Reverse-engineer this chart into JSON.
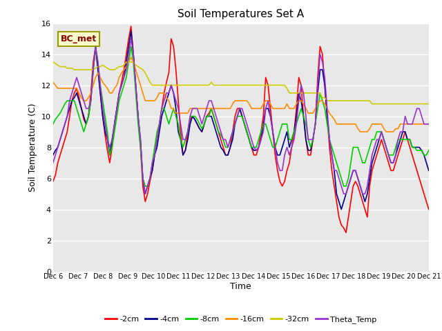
{
  "title": "Soil Temperatures Set A",
  "xlabel": "Time",
  "ylabel": "Soil Temperature (C)",
  "ylim": [
    0,
    16
  ],
  "annotation": "BC_met",
  "bg_color": "#e8e8e8",
  "fig_color": "#ffffff",
  "series_colors": {
    "-2cm": "#ff0000",
    "-4cm": "#00008b",
    "-8cm": "#00cc00",
    "-16cm": "#ff8c00",
    "-32cm": "#cccc00",
    "Theta_Temp": "#9932cc"
  },
  "x_labels": [
    "Dec 6",
    "Dec 7",
    "Dec 8",
    "Dec 9",
    "Dec 10",
    "Dec 11",
    "Dec 12",
    "Dec 13",
    "Dec 14",
    "Dec 15",
    "Dec 16",
    "Dec 17",
    "Dec 18",
    "Dec 19",
    "Dec 20",
    "Dec 21"
  ],
  "n_points": 160,
  "data": {
    "neg2cm": [
      5.8,
      6.2,
      7.0,
      7.5,
      8.0,
      8.5,
      9.0,
      10.0,
      11.0,
      11.5,
      11.8,
      11.2,
      10.5,
      9.8,
      9.5,
      10.0,
      11.5,
      13.5,
      14.5,
      13.0,
      11.5,
      10.0,
      8.8,
      7.8,
      7.0,
      8.0,
      9.5,
      10.5,
      11.5,
      12.2,
      13.0,
      14.0,
      15.0,
      15.8,
      14.0,
      12.0,
      10.0,
      8.0,
      5.5,
      4.5,
      5.0,
      5.8,
      6.5,
      7.5,
      8.5,
      9.5,
      10.5,
      11.5,
      12.2,
      12.8,
      15.0,
      14.5,
      13.0,
      11.0,
      9.0,
      7.5,
      7.8,
      9.0,
      9.8,
      10.0,
      9.8,
      9.5,
      9.2,
      9.0,
      9.5,
      10.0,
      10.2,
      10.5,
      10.0,
      9.5,
      9.0,
      8.5,
      8.0,
      7.5,
      7.5,
      8.0,
      9.0,
      10.0,
      10.5,
      10.5,
      10.0,
      9.5,
      9.0,
      8.5,
      8.0,
      7.5,
      7.5,
      8.0,
      9.0,
      10.0,
      12.5,
      12.0,
      10.5,
      9.0,
      7.5,
      6.5,
      5.8,
      5.5,
      5.8,
      6.5,
      7.0,
      8.0,
      9.0,
      10.5,
      12.5,
      12.0,
      10.0,
      8.5,
      7.5,
      7.5,
      8.5,
      9.5,
      12.5,
      14.5,
      14.0,
      12.0,
      10.0,
      8.0,
      6.5,
      5.5,
      4.5,
      3.5,
      3.0,
      2.8,
      2.5,
      3.5,
      4.5,
      5.5,
      5.8,
      5.5,
      5.0,
      4.5,
      4.0,
      3.5,
      5.5,
      6.5,
      7.0,
      7.5,
      8.0,
      8.5,
      8.0,
      7.5,
      7.0,
      6.5,
      6.5,
      7.0,
      7.5,
      8.0,
      8.5,
      9.0,
      8.5,
      8.0,
      7.5,
      7.0,
      6.5,
      6.0,
      5.5,
      5.0,
      4.5,
      4.0
    ],
    "neg4cm": [
      7.5,
      7.8,
      8.0,
      8.5,
      9.0,
      9.5,
      10.0,
      10.5,
      11.0,
      11.2,
      11.5,
      11.0,
      10.5,
      10.0,
      9.5,
      10.0,
      11.0,
      13.0,
      14.5,
      13.0,
      11.5,
      10.0,
      9.0,
      8.5,
      7.5,
      8.5,
      9.5,
      10.5,
      11.5,
      12.0,
      12.5,
      13.5,
      14.5,
      15.5,
      14.0,
      12.0,
      10.0,
      8.5,
      6.0,
      5.0,
      5.5,
      6.0,
      6.5,
      7.5,
      8.0,
      9.0,
      10.0,
      10.5,
      11.0,
      11.5,
      12.0,
      11.5,
      10.5,
      9.0,
      8.5,
      7.5,
      7.8,
      8.5,
      9.5,
      10.0,
      9.8,
      9.5,
      9.2,
      9.0,
      9.5,
      10.0,
      10.0,
      10.0,
      9.5,
      9.0,
      8.5,
      8.0,
      7.8,
      7.5,
      7.5,
      8.0,
      8.5,
      9.5,
      10.0,
      10.5,
      10.0,
      9.5,
      9.0,
      8.5,
      8.0,
      7.8,
      7.8,
      8.0,
      8.5,
      9.5,
      10.5,
      10.5,
      10.0,
      9.0,
      8.0,
      7.5,
      7.5,
      8.0,
      8.5,
      9.0,
      8.0,
      8.5,
      9.0,
      10.0,
      11.5,
      11.0,
      10.0,
      8.5,
      7.8,
      7.8,
      8.5,
      9.5,
      11.5,
      13.0,
      13.0,
      12.0,
      10.0,
      8.5,
      7.5,
      6.5,
      5.0,
      4.5,
      4.0,
      4.5,
      5.0,
      5.5,
      6.0,
      6.5,
      6.5,
      6.0,
      5.5,
      5.0,
      4.5,
      5.0,
      6.0,
      7.0,
      7.5,
      8.0,
      8.5,
      9.0,
      8.5,
      8.0,
      7.5,
      7.0,
      7.0,
      7.5,
      8.0,
      8.5,
      9.0,
      9.0,
      8.5,
      8.5,
      8.0,
      8.0,
      8.0,
      8.0,
      7.8,
      7.5,
      7.0,
      6.5
    ],
    "neg8cm": [
      9.5,
      9.8,
      10.0,
      10.2,
      10.5,
      10.8,
      11.0,
      11.0,
      11.0,
      11.0,
      10.5,
      10.0,
      9.5,
      9.0,
      9.5,
      10.0,
      11.0,
      13.0,
      14.5,
      13.5,
      12.0,
      11.0,
      10.0,
      9.0,
      7.5,
      8.0,
      9.0,
      10.0,
      11.0,
      11.5,
      12.0,
      12.5,
      13.5,
      14.5,
      13.5,
      11.5,
      9.5,
      8.0,
      6.0,
      5.5,
      5.5,
      6.0,
      7.0,
      8.0,
      9.0,
      9.5,
      10.5,
      10.5,
      10.0,
      9.5,
      10.0,
      10.5,
      10.0,
      9.5,
      8.5,
      8.0,
      8.5,
      9.0,
      10.0,
      10.0,
      10.0,
      9.8,
      9.5,
      9.2,
      9.5,
      10.0,
      10.0,
      10.5,
      10.0,
      9.5,
      9.0,
      8.8,
      8.5,
      8.0,
      8.0,
      8.5,
      9.0,
      9.5,
      10.0,
      10.0,
      10.0,
      9.5,
      9.0,
      8.5,
      8.0,
      8.0,
      8.0,
      8.5,
      9.0,
      9.5,
      9.5,
      9.0,
      8.5,
      8.0,
      8.0,
      8.5,
      9.0,
      9.5,
      9.5,
      9.5,
      8.5,
      8.5,
      9.0,
      9.5,
      10.0,
      10.5,
      10.0,
      9.5,
      8.5,
      8.0,
      8.5,
      9.5,
      10.5,
      11.5,
      11.0,
      10.5,
      9.5,
      8.5,
      8.0,
      7.5,
      7.0,
      6.5,
      6.0,
      5.5,
      5.5,
      6.0,
      7.0,
      8.0,
      8.0,
      8.0,
      7.5,
      7.0,
      7.0,
      7.5,
      8.0,
      8.5,
      8.5,
      9.0,
      9.0,
      9.0,
      8.5,
      8.0,
      7.5,
      7.5,
      7.5,
      8.0,
      8.5,
      8.5,
      8.5,
      8.5,
      8.5,
      8.5,
      8.0,
      8.0,
      7.8,
      7.8,
      7.8,
      7.5,
      7.5,
      7.8
    ],
    "neg16cm": [
      12.2,
      12.0,
      11.8,
      11.8,
      11.8,
      11.8,
      11.8,
      11.8,
      11.8,
      11.8,
      11.8,
      11.5,
      11.2,
      11.0,
      11.0,
      11.2,
      11.5,
      12.0,
      12.5,
      12.8,
      12.5,
      12.2,
      12.0,
      11.8,
      11.5,
      11.5,
      11.8,
      12.0,
      12.5,
      12.8,
      13.0,
      13.2,
      13.5,
      13.8,
      13.5,
      13.0,
      12.5,
      12.0,
      11.5,
      11.0,
      11.0,
      11.0,
      11.0,
      11.0,
      11.2,
      11.5,
      11.5,
      11.5,
      11.2,
      11.0,
      10.5,
      10.5,
      10.2,
      10.2,
      10.2,
      10.2,
      10.2,
      10.2,
      10.5,
      10.5,
      10.5,
      10.5,
      10.5,
      10.5,
      10.5,
      10.5,
      10.5,
      10.5,
      10.5,
      10.5,
      10.5,
      10.5,
      10.5,
      10.5,
      10.5,
      10.5,
      10.8,
      11.0,
      11.0,
      11.0,
      11.0,
      11.0,
      11.0,
      10.8,
      10.5,
      10.5,
      10.5,
      10.5,
      10.5,
      10.8,
      11.0,
      11.0,
      10.8,
      10.5,
      10.5,
      10.5,
      10.5,
      10.5,
      10.5,
      10.8,
      10.5,
      10.5,
      10.5,
      10.8,
      11.0,
      11.0,
      10.8,
      10.5,
      10.2,
      10.2,
      10.2,
      10.5,
      10.8,
      11.0,
      11.0,
      10.8,
      10.5,
      10.2,
      10.0,
      9.8,
      9.5,
      9.5,
      9.5,
      9.5,
      9.5,
      9.5,
      9.5,
      9.5,
      9.5,
      9.2,
      9.0,
      9.0,
      9.0,
      9.0,
      9.2,
      9.5,
      9.5,
      9.5,
      9.5,
      9.5,
      9.2,
      9.0,
      9.0,
      9.0,
      9.0,
      9.2,
      9.2,
      9.5,
      9.5,
      9.5,
      9.5,
      9.5,
      9.5,
      9.5,
      9.5,
      9.5,
      9.5,
      9.5,
      9.5,
      9.5
    ],
    "neg32cm": [
      13.5,
      13.4,
      13.3,
      13.2,
      13.2,
      13.2,
      13.1,
      13.1,
      13.1,
      13.0,
      13.0,
      13.0,
      13.0,
      13.0,
      13.0,
      13.0,
      13.0,
      13.0,
      13.1,
      13.2,
      13.2,
      13.3,
      13.2,
      13.1,
      13.0,
      13.0,
      13.0,
      13.1,
      13.2,
      13.2,
      13.3,
      13.5,
      13.5,
      13.5,
      13.5,
      13.3,
      13.2,
      13.1,
      13.0,
      12.8,
      12.5,
      12.2,
      12.0,
      12.0,
      12.0,
      12.0,
      12.0,
      12.0,
      12.0,
      12.0,
      12.0,
      12.0,
      12.0,
      12.0,
      12.0,
      12.0,
      12.0,
      12.0,
      12.0,
      12.0,
      12.0,
      12.0,
      12.0,
      12.0,
      12.0,
      12.0,
      12.0,
      12.2,
      12.0,
      12.0,
      12.0,
      12.0,
      12.0,
      12.0,
      12.0,
      12.0,
      12.0,
      12.0,
      12.0,
      12.0,
      12.0,
      12.0,
      12.0,
      12.0,
      12.0,
      12.0,
      12.0,
      12.0,
      12.0,
      12.0,
      12.0,
      12.0,
      12.0,
      12.0,
      12.0,
      12.0,
      12.0,
      12.0,
      12.0,
      11.8,
      11.5,
      11.5,
      11.5,
      11.5,
      11.5,
      11.5,
      11.5,
      11.5,
      11.5,
      11.5,
      11.5,
      11.5,
      11.5,
      11.5,
      11.2,
      11.2,
      11.0,
      11.0,
      11.0,
      11.0,
      11.0,
      11.0,
      11.0,
      11.0,
      11.0,
      11.0,
      11.0,
      11.0,
      11.0,
      11.0,
      11.0,
      11.0,
      11.0,
      11.0,
      11.0,
      10.8,
      10.8,
      10.8,
      10.8,
      10.8,
      10.8,
      10.8,
      10.8,
      10.8,
      10.8,
      10.8,
      10.8,
      10.8,
      10.8,
      10.8,
      10.8,
      10.8,
      10.8,
      10.8,
      10.8,
      10.8,
      10.8,
      10.8,
      10.8,
      10.8
    ],
    "theta": [
      7.0,
      7.5,
      8.0,
      8.5,
      9.0,
      9.5,
      10.0,
      11.0,
      11.5,
      12.0,
      12.5,
      12.0,
      11.5,
      11.0,
      10.5,
      10.5,
      11.0,
      13.0,
      14.5,
      13.5,
      12.0,
      10.5,
      9.5,
      8.5,
      8.0,
      8.5,
      9.5,
      10.5,
      11.5,
      12.0,
      12.5,
      13.0,
      14.0,
      15.0,
      14.0,
      12.0,
      10.0,
      8.5,
      6.0,
      5.0,
      5.5,
      6.0,
      7.0,
      7.5,
      8.5,
      9.5,
      10.5,
      11.0,
      11.5,
      11.5,
      12.0,
      11.5,
      11.0,
      10.5,
      9.5,
      8.5,
      8.5,
      9.0,
      10.0,
      10.5,
      10.5,
      10.5,
      10.0,
      9.5,
      10.0,
      10.5,
      11.0,
      11.0,
      10.5,
      10.0,
      9.5,
      9.0,
      8.5,
      8.5,
      8.0,
      8.5,
      9.0,
      9.5,
      10.0,
      10.5,
      10.5,
      10.0,
      9.5,
      9.0,
      8.5,
      8.0,
      7.8,
      8.0,
      8.5,
      9.0,
      10.5,
      11.0,
      10.0,
      9.0,
      8.0,
      7.0,
      6.5,
      6.5,
      7.5,
      8.0,
      7.5,
      8.0,
      8.5,
      9.5,
      11.0,
      12.0,
      11.5,
      10.0,
      8.5,
      8.5,
      8.5,
      9.5,
      12.0,
      14.0,
      13.5,
      12.5,
      10.5,
      8.5,
      7.5,
      6.5,
      6.5,
      6.0,
      5.5,
      5.0,
      5.0,
      5.5,
      6.0,
      6.5,
      6.5,
      6.0,
      5.5,
      5.0,
      5.0,
      5.5,
      6.5,
      7.5,
      8.0,
      8.5,
      8.5,
      9.0,
      8.5,
      8.0,
      7.5,
      7.0,
      7.0,
      7.5,
      8.5,
      9.0,
      9.0,
      10.0,
      9.5,
      9.5,
      9.5,
      10.0,
      10.5,
      10.5,
      10.0,
      9.5,
      9.5,
      9.5
    ]
  }
}
